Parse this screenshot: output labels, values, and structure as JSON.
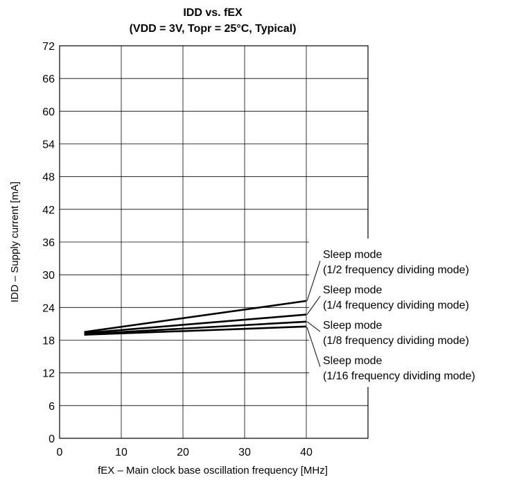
{
  "chart_data": {
    "type": "line",
    "title": "IDD vs. fEX",
    "subtitle": "(VDD = 3V, Topr = 25°C, Typical)",
    "xlabel": "fEX – Main clock base oscillation frequency [MHz]",
    "ylabel": "IDD – Supply current [mA]",
    "xlim": [
      0,
      50
    ],
    "ylim": [
      0,
      72
    ],
    "xticks": [
      0,
      10,
      20,
      30,
      40
    ],
    "yticks": [
      0,
      6,
      12,
      18,
      24,
      30,
      36,
      42,
      48,
      54,
      60,
      66,
      72
    ],
    "grid": true,
    "series": [
      {
        "name_line1": "Sleep mode",
        "name_line2": "(1/2 frequency dividing mode)",
        "x": [
          4,
          40
        ],
        "y": [
          19.5,
          25.2
        ]
      },
      {
        "name_line1": "Sleep mode",
        "name_line2": "(1/4 frequency dividing mode)",
        "x": [
          4,
          40
        ],
        "y": [
          19.3,
          22.7
        ]
      },
      {
        "name_line1": "Sleep mode",
        "name_line2": "(1/8 frequency dividing mode)",
        "x": [
          4,
          40
        ],
        "y": [
          19.1,
          21.4
        ]
      },
      {
        "name_line1": "Sleep mode",
        "name_line2": "(1/16 frequency dividing mode)",
        "x": [
          4,
          40
        ],
        "y": [
          19.0,
          20.5
        ]
      }
    ]
  }
}
